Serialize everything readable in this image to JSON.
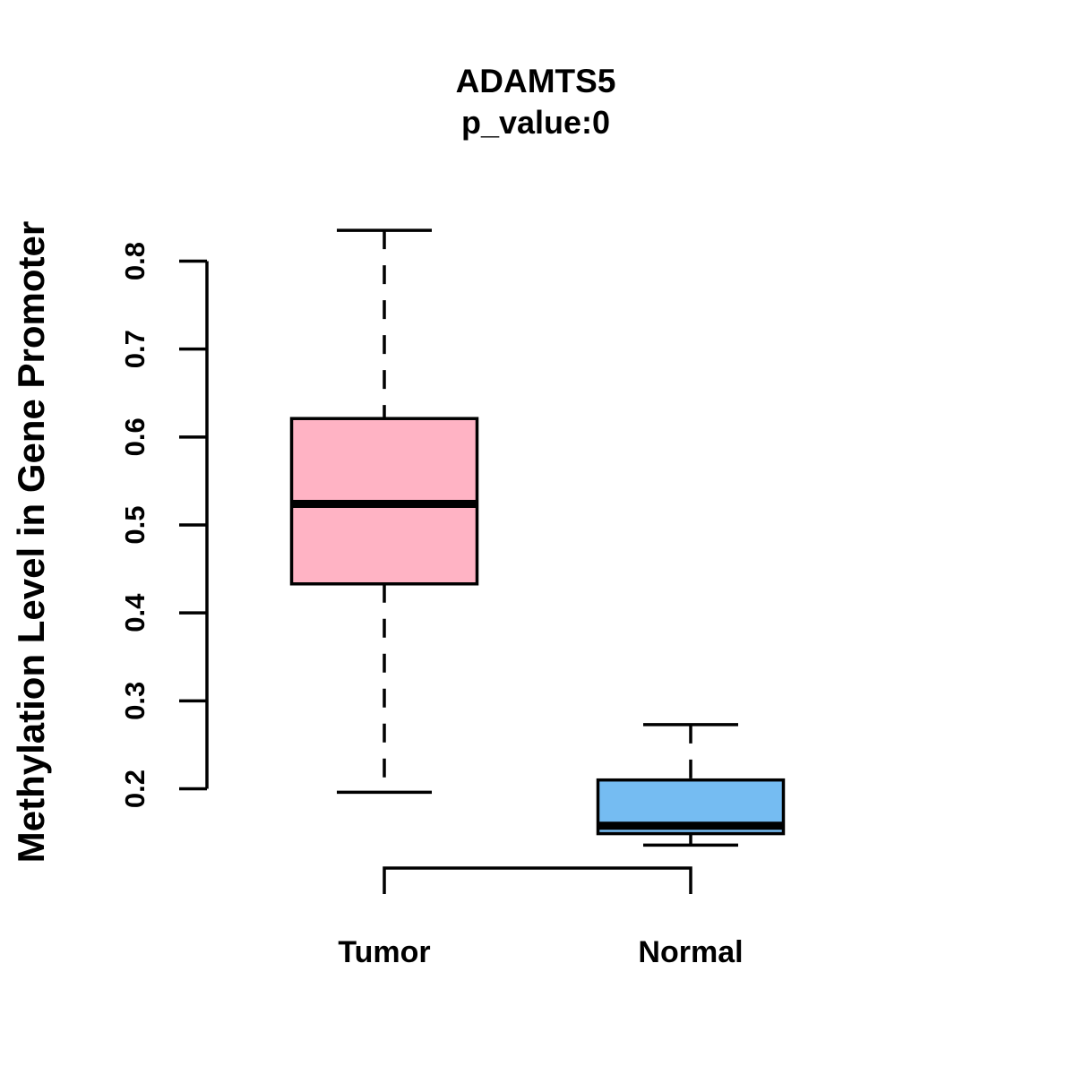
{
  "title": "ADAMTS5",
  "subtitle": "p_value:0",
  "y_axis_label": "Methylation Level in Gene Promoter",
  "chart_data": {
    "type": "boxplot",
    "title": "ADAMTS5",
    "subtitle": "p_value:0",
    "ylabel": "Methylation Level in Gene Promoter",
    "xlabel": "",
    "ylim": [
      0.2,
      0.8
    ],
    "yticks": [
      0.2,
      0.3,
      0.4,
      0.5,
      0.6,
      0.7,
      0.8
    ],
    "grid": false,
    "legend": "none",
    "axis_color": "#000000",
    "whisker_style": "dashed",
    "groups": [
      {
        "label": "Tumor",
        "fill_color": "#FFB3C4",
        "whisker_low": 0.196,
        "q1": 0.433,
        "median": 0.524,
        "q3": 0.621,
        "whisker_high": 0.835
      },
      {
        "label": "Normal",
        "fill_color": "#75BCF2",
        "whisker_low": 0.136,
        "q1": 0.149,
        "median": 0.158,
        "q3": 0.21,
        "whisker_high": 0.273
      }
    ]
  }
}
